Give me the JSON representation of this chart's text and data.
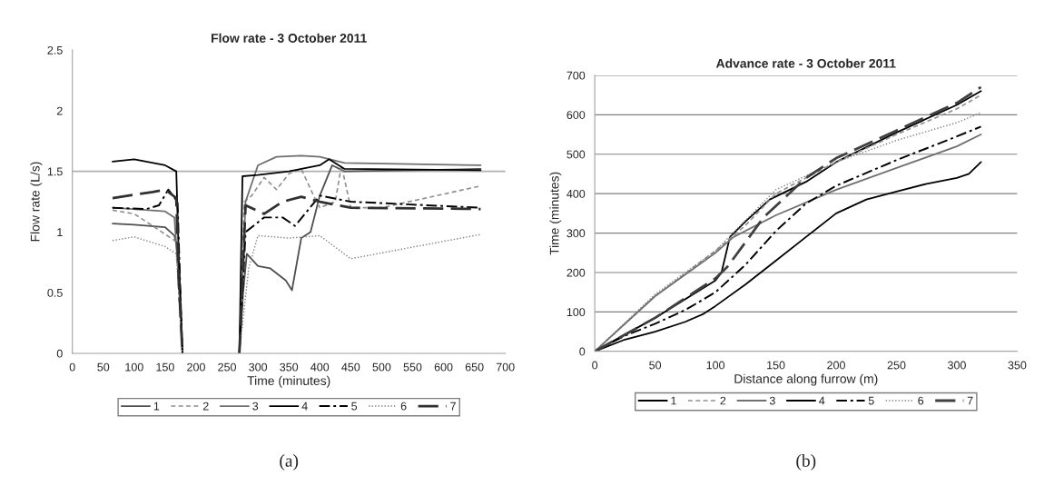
{
  "chart_data": [
    {
      "type": "line",
      "title": "Flow rate - 3 October 2011",
      "xlabel": "Time (minutes)",
      "ylabel": "Flow rate (L/s)",
      "xlim": [
        0,
        700
      ],
      "xticks": [
        0,
        50,
        100,
        150,
        200,
        250,
        300,
        350,
        400,
        450,
        500,
        550,
        600,
        650,
        700
      ],
      "ylim": [
        0,
        2.5
      ],
      "yticks": [
        0,
        0.5,
        1,
        1.5,
        2,
        2.5
      ],
      "grid": false,
      "legend": "bottom",
      "ref_lines": [
        {
          "axis": "y",
          "value": 1.5,
          "color": "#b0b0b0"
        }
      ],
      "annotations": [
        "(a)"
      ],
      "series": [
        {
          "name": "1",
          "color": "#505050",
          "line_style": "solid",
          "x": [
            65,
            100,
            150,
            165,
            172,
            178,
            null,
            270,
            276,
            282,
            300,
            320,
            345,
            355,
            370,
            385,
            400,
            420,
            440,
            660
          ],
          "values": [
            1.07,
            1.06,
            1.04,
            0.97,
            0.8,
            0,
            null,
            0,
            0.5,
            0.82,
            0.72,
            0.7,
            0.6,
            0.52,
            0.95,
            1.0,
            1.3,
            1.55,
            1.5,
            1.52
          ]
        },
        {
          "name": "2",
          "color": "#909090",
          "line_style": "dashed",
          "x": [
            65,
            100,
            130,
            168,
            172,
            178,
            null,
            270,
            278,
            290,
            310,
            330,
            350,
            370,
            390,
            400,
            425,
            435,
            450,
            500,
            660
          ],
          "values": [
            1.18,
            1.15,
            1.05,
            0.92,
            0.5,
            0,
            null,
            0,
            1.25,
            1.3,
            1.45,
            1.35,
            1.48,
            1.52,
            1.3,
            1.2,
            1.25,
            1.55,
            1.2,
            1.2,
            1.38
          ]
        },
        {
          "name": "3",
          "color": "#707070",
          "line_style": "solid",
          "x": [
            65,
            150,
            165,
            172,
            178,
            null,
            270,
            280,
            300,
            330,
            370,
            400,
            440,
            660
          ],
          "values": [
            1.2,
            1.17,
            1.12,
            0.6,
            0,
            null,
            0,
            1.25,
            1.55,
            1.62,
            1.63,
            1.62,
            1.57,
            1.55
          ]
        },
        {
          "name": "4",
          "color": "#000000",
          "line_style": "solid",
          "x": [
            65,
            100,
            150,
            168,
            172,
            178,
            null,
            270,
            275,
            300,
            350,
            400,
            415,
            440,
            660
          ],
          "values": [
            1.58,
            1.6,
            1.55,
            1.5,
            0.8,
            0,
            null,
            0,
            1.46,
            1.47,
            1.5,
            1.55,
            1.6,
            1.52,
            1.51
          ]
        },
        {
          "name": "5",
          "color": "#000000",
          "line_style": "dashdot",
          "x": [
            65,
            120,
            140,
            155,
            170,
            174,
            178,
            null,
            270,
            280,
            310,
            340,
            360,
            400,
            450,
            660
          ],
          "values": [
            1.2,
            1.19,
            1.22,
            1.35,
            1.25,
            0.6,
            0,
            null,
            0,
            1.0,
            1.12,
            1.12,
            1.05,
            1.3,
            1.25,
            1.2
          ]
        },
        {
          "name": "6",
          "color": "#808080",
          "line_style": "dotted",
          "x": [
            65,
            100,
            150,
            168,
            172,
            178,
            null,
            270,
            285,
            300,
            350,
            400,
            450,
            660
          ],
          "values": [
            0.93,
            0.96,
            0.88,
            0.82,
            0.5,
            0,
            null,
            0,
            0.7,
            0.97,
            0.95,
            0.97,
            0.78,
            0.98
          ]
        },
        {
          "name": "7",
          "color": "#303030",
          "line_style": "longdash",
          "x": [
            65,
            130,
            150,
            168,
            172,
            178,
            null,
            270,
            280,
            310,
            340,
            370,
            400,
            450,
            660
          ],
          "values": [
            1.28,
            1.33,
            1.35,
            1.28,
            0.6,
            0,
            null,
            0,
            1.22,
            1.15,
            1.25,
            1.29,
            1.25,
            1.2,
            1.19
          ]
        }
      ]
    },
    {
      "type": "line",
      "title": "Advance rate - 3 October 2011",
      "xlabel": "Distance along furrow (m)",
      "ylabel": "Time (minutes)",
      "xlim": [
        0,
        350
      ],
      "xticks": [
        0,
        50,
        100,
        150,
        200,
        250,
        300,
        350
      ],
      "ylim": [
        0,
        700
      ],
      "yticks": [
        0,
        100,
        200,
        300,
        400,
        500,
        600,
        700
      ],
      "grid": "y",
      "legend": "bottom",
      "annotations": [
        "(b)"
      ],
      "series": [
        {
          "name": "1",
          "color": "#000000",
          "line_style": "solid",
          "x": [
            0,
            50,
            100,
            105,
            112,
            125,
            145,
            175,
            200,
            250,
            300,
            320
          ],
          "values": [
            0,
            85,
            180,
            200,
            290,
            330,
            385,
            430,
            480,
            555,
            625,
            660
          ]
        },
        {
          "name": "2",
          "color": "#909090",
          "line_style": "dashed",
          "x": [
            0,
            50,
            100,
            125,
            150,
            200,
            250,
            300,
            320
          ],
          "values": [
            0,
            140,
            255,
            320,
            400,
            480,
            550,
            615,
            650
          ]
        },
        {
          "name": "3",
          "color": "#707070",
          "line_style": "solid",
          "x": [
            0,
            50,
            100,
            115,
            150,
            200,
            250,
            300,
            320
          ],
          "values": [
            0,
            140,
            250,
            290,
            345,
            410,
            465,
            520,
            550
          ]
        },
        {
          "name": "4",
          "color": "#000000",
          "line_style": "solid",
          "x": [
            0,
            25,
            50,
            75,
            90,
            100,
            125,
            150,
            175,
            200,
            225,
            250,
            275,
            300,
            310,
            320
          ],
          "values": [
            0,
            30,
            50,
            75,
            95,
            115,
            170,
            230,
            290,
            350,
            385,
            405,
            425,
            440,
            450,
            480
          ]
        },
        {
          "name": "5",
          "color": "#000000",
          "line_style": "dashdot",
          "x": [
            0,
            25,
            50,
            75,
            100,
            125,
            150,
            175,
            200,
            250,
            300,
            320
          ],
          "values": [
            0,
            40,
            70,
            105,
            150,
            220,
            305,
            375,
            420,
            485,
            545,
            570
          ]
        },
        {
          "name": "6",
          "color": "#808080",
          "line_style": "dotted",
          "x": [
            0,
            50,
            100,
            150,
            200,
            250,
            300,
            320
          ],
          "values": [
            0,
            145,
            255,
            410,
            480,
            535,
            580,
            605
          ]
        },
        {
          "name": "7",
          "color": "#404040",
          "line_style": "longdash",
          "x": [
            0,
            50,
            100,
            110,
            140,
            175,
            200,
            250,
            300,
            320
          ],
          "values": [
            0,
            85,
            185,
            215,
            340,
            440,
            490,
            560,
            630,
            670
          ]
        }
      ]
    }
  ]
}
